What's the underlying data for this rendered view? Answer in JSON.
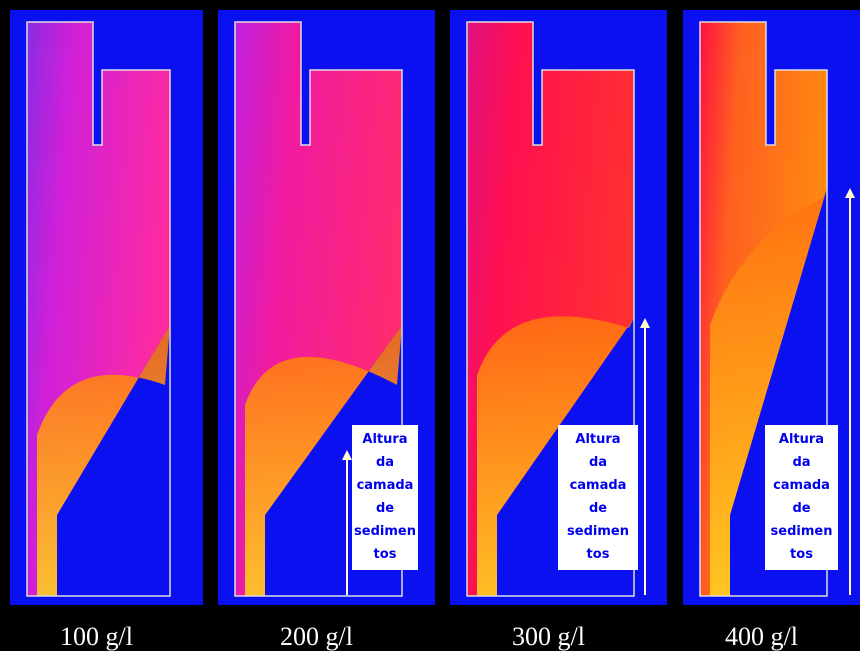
{
  "panels": [
    {
      "label": "100 g/l"
    },
    {
      "label": "200 g/l",
      "annotation": [
        "Altura",
        "da",
        "camada",
        "de",
        "sedimen",
        "tos"
      ]
    },
    {
      "label": "300 g/l",
      "annotation": [
        "Altura",
        "da",
        "camada",
        "de",
        "sedimen",
        "tos"
      ]
    },
    {
      "label": "400 g/l",
      "annotation": [
        "Altura",
        "da",
        "camada",
        "de",
        "sedimen",
        "tos"
      ]
    }
  ]
}
